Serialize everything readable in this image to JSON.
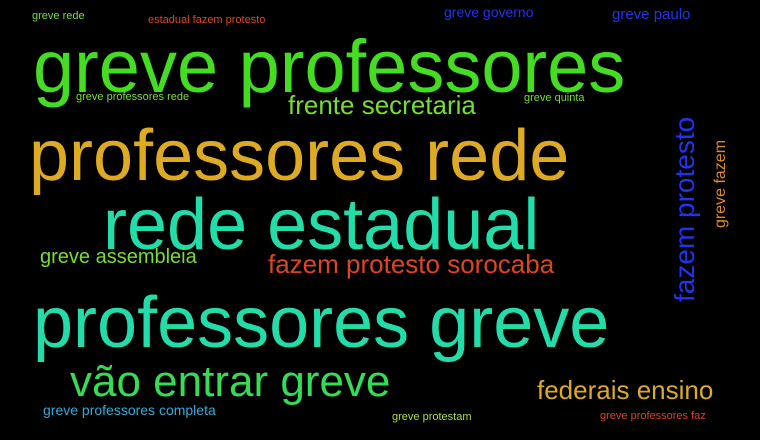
{
  "colors": {
    "background": "#000000",
    "lime": "#44dd22",
    "yellow_green": "#77dd33",
    "gold": "#ddaa22",
    "teal": "#22ddaa",
    "green": "#33dd55",
    "red": "#dd4422",
    "blue": "#2233ee",
    "orange": "#dd8822",
    "sky": "#33aadd",
    "pale": "#aadd44"
  },
  "words": [
    {
      "text": "greve professores",
      "color": "lime"
    },
    {
      "text": "professores rede",
      "color": "gold"
    },
    {
      "text": "rede estadual",
      "color": "teal"
    },
    {
      "text": "professores greve",
      "color": "teal"
    },
    {
      "text": "vão entrar greve",
      "color": "green"
    },
    {
      "text": "frente secretaria",
      "color": "yellow_green"
    },
    {
      "text": "fazem protesto sorocaba",
      "color": "red"
    },
    {
      "text": "fazem protesto",
      "color": "blue"
    },
    {
      "text": "greve assembleia",
      "color": "yellow_green"
    },
    {
      "text": "federais ensino",
      "color": "gold"
    },
    {
      "text": "greve fazem",
      "color": "orange"
    },
    {
      "text": "greve governo",
      "color": "blue"
    },
    {
      "text": "greve paulo",
      "color": "blue"
    },
    {
      "text": "greve rede",
      "color": "yellow_green"
    },
    {
      "text": "estadual fazem protesto",
      "color": "red"
    },
    {
      "text": "greve professores rede",
      "color": "yellow_green"
    },
    {
      "text": "greve quinta",
      "color": "yellow_green"
    },
    {
      "text": "greve professores completa",
      "color": "sky"
    },
    {
      "text": "greve protestam",
      "color": "pale"
    },
    {
      "text": "greve professores faz",
      "color": "red"
    }
  ]
}
